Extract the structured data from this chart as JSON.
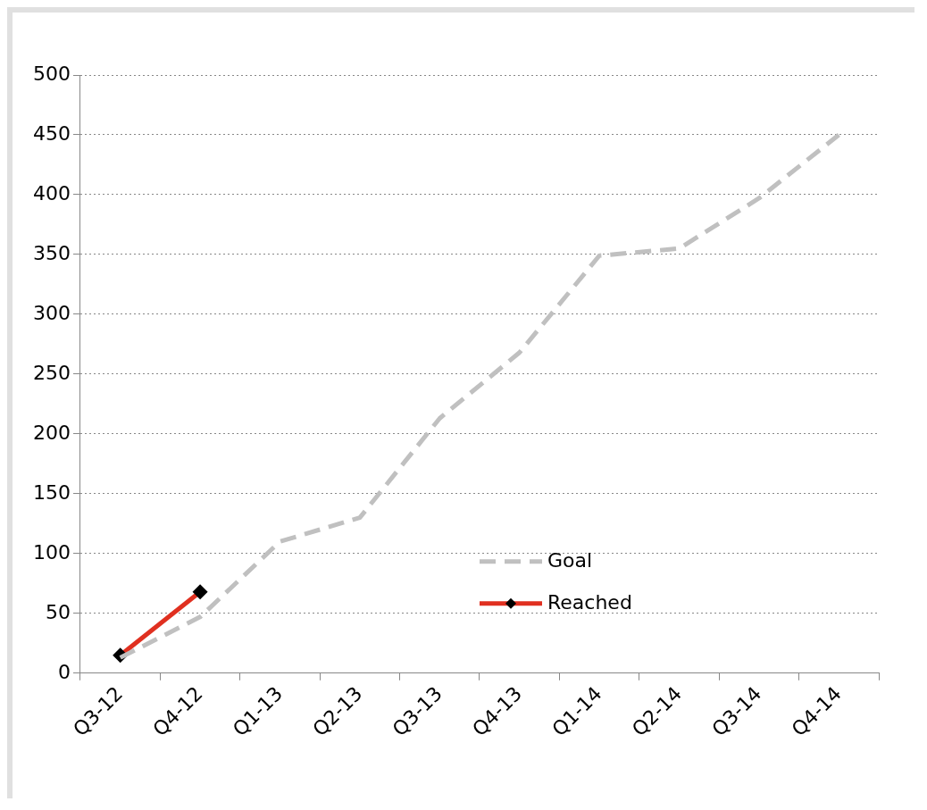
{
  "chart_data": {
    "type": "line",
    "categories": [
      "Q3-12",
      "Q4-12",
      "Q1-13",
      "Q2-13",
      "Q3-13",
      "Q4-13",
      "Q1-14",
      "Q2-14",
      "Q3-14",
      "Q4-14"
    ],
    "series": [
      {
        "name": "Goal",
        "color": "#c0c0c0",
        "line_style": "dashed",
        "marker": "none",
        "values": [
          13,
          47,
          110,
          130,
          213,
          268,
          349,
          355,
          397,
          450
        ]
      },
      {
        "name": "Reached",
        "color": "#e03020",
        "line_style": "solid",
        "marker": "diamond",
        "values": [
          15,
          68,
          null,
          null,
          null,
          null,
          null,
          null,
          null,
          null
        ]
      }
    ],
    "ylim": [
      0,
      500
    ],
    "yticks": [
      0,
      50,
      100,
      150,
      200,
      250,
      300,
      350,
      400,
      450,
      500
    ],
    "grid": "y",
    "legend": "bottom"
  }
}
